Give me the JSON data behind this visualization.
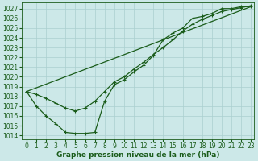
{
  "xlabel": "Graphe pression niveau de la mer (hPa)",
  "background_color": "#cce8e8",
  "grid_color": "#aacfcf",
  "line_color": "#1a5c1a",
  "xlim_min": -0.5,
  "xlim_max": 23.3,
  "ylim_min": 1013.6,
  "ylim_max": 1027.6,
  "yticks": [
    1014,
    1015,
    1016,
    1017,
    1018,
    1019,
    1020,
    1021,
    1022,
    1023,
    1024,
    1025,
    1026,
    1027
  ],
  "xticks": [
    0,
    1,
    2,
    3,
    4,
    5,
    6,
    7,
    8,
    9,
    10,
    11,
    12,
    13,
    14,
    15,
    16,
    17,
    18,
    19,
    20,
    21,
    22,
    23
  ],
  "line1_x": [
    0,
    1,
    2,
    3,
    4,
    5,
    6,
    7,
    8,
    9,
    10,
    11,
    12,
    13,
    14,
    15,
    16,
    17,
    18,
    19,
    20,
    21,
    22,
    23
  ],
  "line1_y": [
    1018.5,
    1017.0,
    1016.0,
    1015.2,
    1014.3,
    1014.2,
    1014.2,
    1014.3,
    1017.5,
    1019.2,
    1019.7,
    1020.5,
    1021.2,
    1022.2,
    1023.8,
    1024.5,
    1025.0,
    1026.0,
    1026.2,
    1026.5,
    1027.0,
    1027.0,
    1027.2,
    1027.2
  ],
  "line2_x": [
    0,
    23
  ],
  "line2_y": [
    1018.5,
    1027.2
  ],
  "line3_x": [
    0,
    1,
    2,
    3,
    4,
    5,
    6,
    7,
    8,
    9,
    10,
    11,
    12,
    13,
    14,
    15,
    16,
    17,
    18,
    19,
    20,
    21,
    22,
    23
  ],
  "line3_y": [
    1018.5,
    1018.2,
    1017.8,
    1017.3,
    1016.8,
    1016.5,
    1016.8,
    1017.5,
    1018.5,
    1019.5,
    1020.0,
    1020.8,
    1021.5,
    1022.3,
    1023.0,
    1023.8,
    1024.7,
    1025.4,
    1025.9,
    1026.3,
    1026.7,
    1026.9,
    1027.1,
    1027.3
  ],
  "tick_fontsize": 5.5,
  "xlabel_fontsize": 6.5
}
